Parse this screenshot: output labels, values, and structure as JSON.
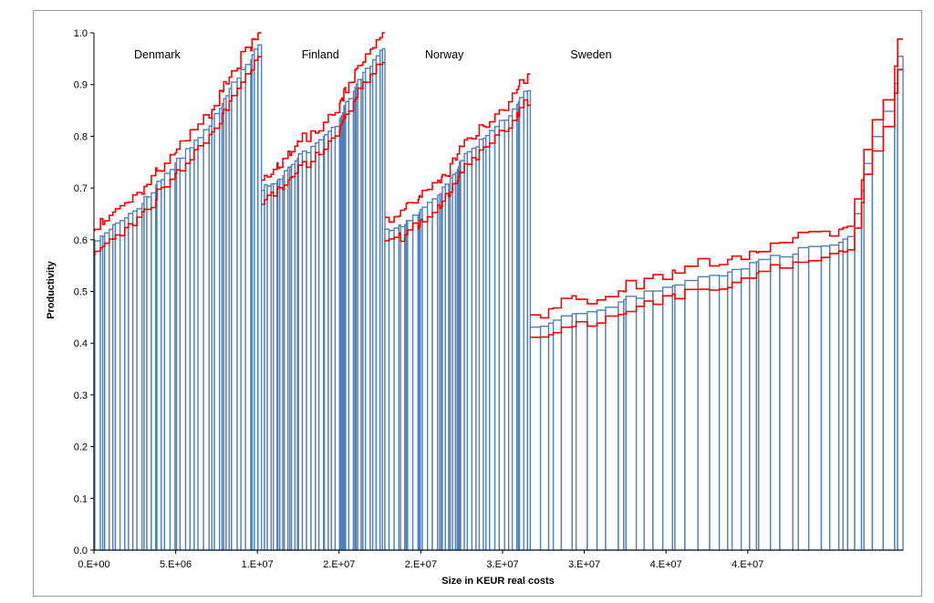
{
  "chart_data": {
    "type": "bar",
    "xlabel": "Size in KEUR real costs",
    "ylabel": "Productivity",
    "xlim": [
      0,
      49500000
    ],
    "ylim": [
      0,
      1
    ],
    "y_ticks": [
      "0.0",
      "0.1",
      "0.2",
      "0.3",
      "0.4",
      "0.5",
      "0.6",
      "0.7",
      "0.8",
      "0.9",
      "1.0"
    ],
    "x_ticks": [
      "0.E+00",
      "5.E+06",
      "1.E+07",
      "2.E+07",
      "2.E+07",
      "3.E+07",
      "3.E+07",
      "4.E+07",
      "4.E+07"
    ],
    "x_tick_values": [
      0,
      5000000,
      10000000,
      15000000,
      20000000,
      25000000,
      30000000,
      35000000,
      40000000
    ],
    "grid": false,
    "legend": "none",
    "colors": {
      "bars": "#4f81bd",
      "bounds": "#ff0000",
      "axis": "#000000"
    },
    "regions": [
      {
        "name": "Denmark",
        "x_start": 0,
        "x_end": 10250000,
        "y_start": 0.6,
        "y_end": 0.98
      },
      {
        "name": "Finland",
        "x_start": 10250000,
        "x_end": 17800000,
        "y_start": 0.7,
        "y_end": 0.97
      },
      {
        "name": "Norway",
        "x_start": 17800000,
        "x_end": 26700000,
        "y_start": 0.62,
        "y_end": 0.89
      },
      {
        "name": "Sweden",
        "x_start": 26700000,
        "x_end": 49500000,
        "y_start": 0.43,
        "y_end": 0.95
      }
    ],
    "series": [
      {
        "role": "productivity",
        "values": "step bars"
      },
      {
        "role": "upper-bound"
      },
      {
        "role": "lower-bound"
      }
    ]
  }
}
